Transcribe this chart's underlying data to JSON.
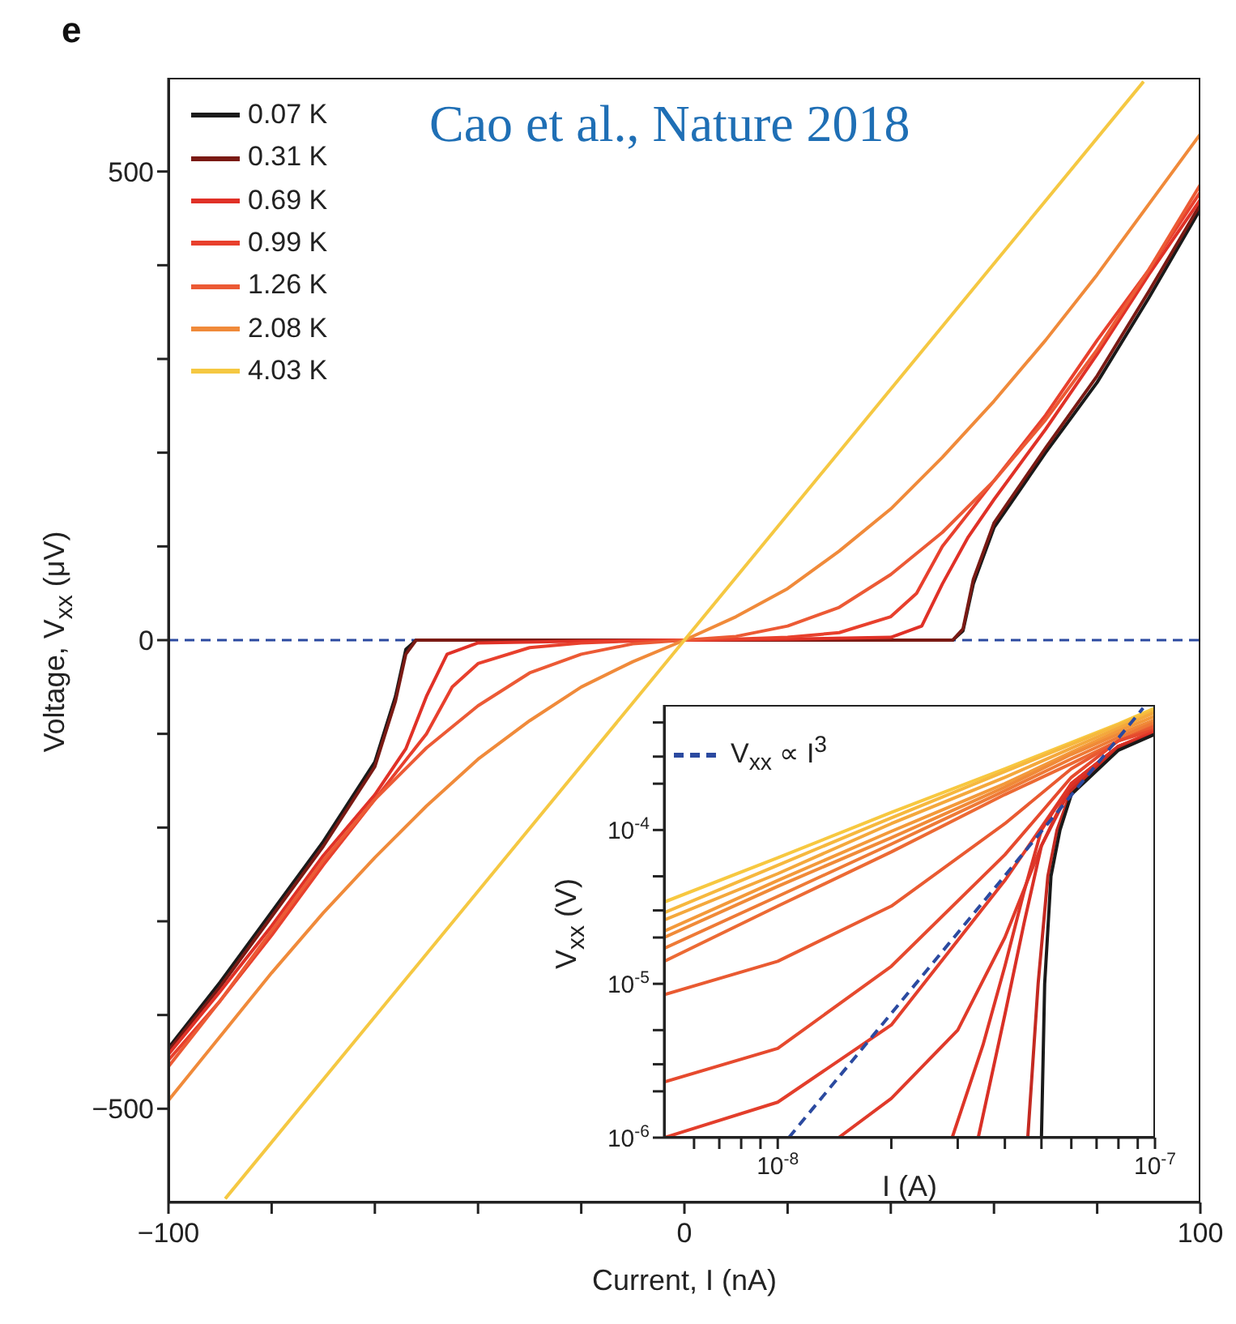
{
  "chart_data": [
    {
      "type": "line",
      "xlabel": "Current, I (nA)",
      "ylabel": "Voltage, V$_{xx}$ (μV)",
      "annotations": [
        "e",
        "Cao et al., Nature 2018"
      ],
      "xlim": [
        -100,
        100
      ],
      "ylim": [
        -600,
        600
      ],
      "xticks": [
        -100,
        {
          "value": -80,
          "label": null
        },
        {
          "value": -60,
          "label": null
        },
        {
          "value": -40,
          "label": null
        },
        {
          "value": -20,
          "label": null
        },
        0,
        {
          "value": 20,
          "label": null
        },
        {
          "value": 40,
          "label": null
        },
        {
          "value": 60,
          "label": null
        },
        {
          "value": 80,
          "label": null
        },
        100
      ],
      "yticks": [
        -500,
        {
          "value": -400,
          "label": null
        },
        {
          "value": -300,
          "label": null
        },
        {
          "value": -200,
          "label": null
        },
        {
          "value": -100,
          "label": null
        },
        0,
        {
          "value": 100,
          "label": null
        },
        {
          "value": 200,
          "label": null
        },
        {
          "value": 300,
          "label": null
        },
        {
          "value": 400,
          "label": null
        },
        500
      ],
      "legend": "top left",
      "marker": "none",
      "ref_lines": [
        {
          "axis": "y",
          "value": 0,
          "color": "#2b4aa0",
          "line_style": "dashed"
        }
      ],
      "series": [
        {
          "name": "0.07 K",
          "color": "#1a1a1a",
          "x": [
            -100,
            -90,
            -80,
            -70,
            -60,
            -56,
            -54,
            -52,
            0,
            52,
            54,
            56,
            60,
            70,
            80,
            90,
            100
          ],
          "values": [
            -435,
            -365,
            -290,
            -215,
            -130,
            -60,
            -10,
            0,
            0,
            0,
            10,
            60,
            120,
            200,
            275,
            365,
            460
          ]
        },
        {
          "name": "0.31 K",
          "color": "#7a1a14",
          "x": [
            -100,
            -90,
            -80,
            -70,
            -60,
            -56,
            -54,
            -52,
            0,
            52,
            54,
            56,
            60,
            70,
            80,
            90,
            100
          ],
          "values": [
            -438,
            -370,
            -295,
            -220,
            -135,
            -65,
            -15,
            0,
            0,
            0,
            12,
            65,
            125,
            205,
            282,
            372,
            465
          ]
        },
        {
          "name": "0.69 K",
          "color": "#e03127",
          "x": [
            -100,
            -90,
            -80,
            -70,
            -60,
            -54,
            -50,
            -46,
            -40,
            -20,
            0,
            20,
            40,
            46,
            50,
            55,
            60,
            70,
            80,
            90,
            100
          ],
          "values": [
            -442,
            -375,
            -305,
            -230,
            -165,
            -116,
            -60,
            -15,
            -3,
            -1,
            0,
            1,
            3,
            15,
            60,
            110,
            150,
            225,
            305,
            390,
            470
          ]
        },
        {
          "name": "0.99 K",
          "color": "#e8402d",
          "x": [
            -100,
            -90,
            -80,
            -70,
            -60,
            -50,
            -45,
            -40,
            -30,
            -20,
            -10,
            0,
            10,
            20,
            30,
            40,
            45,
            50,
            60,
            70,
            80,
            90,
            100
          ],
          "values": [
            -448,
            -385,
            -315,
            -240,
            -170,
            -100,
            -50,
            -25,
            -8,
            -3,
            -1,
            0,
            1,
            3,
            8,
            25,
            50,
            100,
            170,
            240,
            320,
            395,
            478
          ]
        },
        {
          "name": "1.26 K",
          "color": "#ec5a35",
          "x": [
            -100,
            -90,
            -80,
            -70,
            -60,
            -50,
            -40,
            -30,
            -20,
            -10,
            0,
            10,
            20,
            30,
            40,
            50,
            60,
            70,
            80,
            90,
            100
          ],
          "values": [
            -455,
            -385,
            -310,
            -235,
            -170,
            -115,
            -70,
            -35,
            -15,
            -4,
            0,
            4,
            15,
            35,
            70,
            115,
            170,
            235,
            310,
            395,
            486
          ]
        },
        {
          "name": "2.08 K",
          "color": "#f08a3a",
          "x": [
            -100,
            -90,
            -80,
            -70,
            -60,
            -50,
            -40,
            -30,
            -20,
            -10,
            0,
            10,
            20,
            30,
            40,
            50,
            60,
            70,
            80,
            90,
            100
          ],
          "values": [
            -491,
            -423,
            -355,
            -291,
            -232,
            -177,
            -127,
            -86,
            -50,
            -23,
            0,
            25,
            55,
            95,
            140,
            195,
            255,
            320,
            390,
            465,
            540
          ]
        },
        {
          "name": "4.03 K",
          "color": "#f5c842",
          "x": [
            -89,
            0,
            89
          ],
          "values": [
            -596,
            0,
            596
          ]
        }
      ]
    },
    {
      "type": "line",
      "xlabel": "I (A)",
      "ylabel": "V$_{xx}$ (V)",
      "log": "xy",
      "xlim": [
        5e-09,
        1e-07
      ],
      "ylim": [
        1e-06,
        0.00065
      ],
      "xticks": [
        {
          "value": 6e-09,
          "label": null
        },
        {
          "value": 7e-09,
          "label": null
        },
        {
          "value": 8e-09,
          "label": null
        },
        {
          "value": 9e-09,
          "label": null
        },
        {
          "value": 1e-08,
          "label": "10$^{-8}$"
        },
        {
          "value": 2e-08,
          "label": null
        },
        {
          "value": 3e-08,
          "label": null
        },
        {
          "value": 4e-08,
          "label": null
        },
        {
          "value": 5e-08,
          "label": null
        },
        {
          "value": 6e-08,
          "label": null
        },
        {
          "value": 7e-08,
          "label": null
        },
        {
          "value": 8e-08,
          "label": null
        },
        {
          "value": 9e-08,
          "label": null
        },
        {
          "value": 1e-07,
          "label": "10$^{-7}$"
        }
      ],
      "yticks": [
        {
          "value": 1e-06,
          "label": "10$^{-6}$"
        },
        {
          "value": 2e-06,
          "label": null
        },
        {
          "value": 3e-06,
          "label": null
        },
        {
          "value": 5e-06,
          "label": null
        },
        {
          "value": 1e-05,
          "label": "10$^{-5}$"
        },
        {
          "value": 2e-05,
          "label": null
        },
        {
          "value": 3e-05,
          "label": null
        },
        {
          "value": 5e-05,
          "label": null
        },
        {
          "value": 0.0001,
          "label": "10$^{-4}$"
        },
        {
          "value": 0.0002,
          "label": null
        },
        {
          "value": 0.0003,
          "label": null
        },
        {
          "value": 0.0005,
          "label": null
        }
      ],
      "legend": "top left",
      "marker": "none",
      "series": [
        {
          "color": "#f7c840",
          "x": [
            5e-09,
            1e-08,
            2e-08,
            4e-08,
            6e-08,
            8e-08,
            1e-07
          ],
          "values": [
            3.4e-05,
            6.6e-05,
            0.00013,
            0.00025,
            0.00037,
            0.00049,
            0.00062
          ]
        },
        {
          "color": "#f6b83e",
          "x": [
            5e-09,
            1e-08,
            2e-08,
            4e-08,
            6e-08,
            8e-08,
            1e-07
          ],
          "values": [
            2.9e-05,
            5.9e-05,
            0.00012,
            0.00024,
            0.00036,
            0.00048,
            0.0006
          ]
        },
        {
          "color": "#f4a83c",
          "x": [
            5e-09,
            1e-08,
            2e-08,
            4e-08,
            6e-08,
            8e-08,
            1e-07
          ],
          "values": [
            2.6e-05,
            5.2e-05,
            0.00011,
            0.00022,
            0.00034,
            0.00046,
            0.00058
          ]
        },
        {
          "color": "#f3993a",
          "x": [
            5e-09,
            1e-08,
            2e-08,
            4e-08,
            6e-08,
            8e-08,
            1e-07
          ],
          "values": [
            2.2e-05,
            4.7e-05,
            9.8e-05,
            0.0002,
            0.00032,
            0.00044,
            0.00055
          ]
        },
        {
          "color": "#f08a38",
          "x": [
            5e-09,
            1e-08,
            2e-08,
            4e-08,
            6e-08,
            8e-08,
            1e-07
          ],
          "values": [
            2e-05,
            4.3e-05,
            8.9e-05,
            0.00019,
            0.00031,
            0.00042,
            0.00052
          ]
        },
        {
          "color": "#ee7a36",
          "x": [
            5e-09,
            1e-08,
            2e-08,
            4e-08,
            6e-08,
            8e-08,
            1e-07
          ],
          "values": [
            1.7e-05,
            3.7e-05,
            8.1e-05,
            0.00018,
            0.00029,
            0.0004,
            0.0005
          ]
        },
        {
          "color": "#ec6a34",
          "x": [
            5e-09,
            1e-08,
            2e-08,
            4e-08,
            6e-08,
            8e-08,
            1e-07
          ],
          "values": [
            1.4e-05,
            3.2e-05,
            7.2e-05,
            0.00017,
            0.00027,
            0.00038,
            0.00048
          ]
        },
        {
          "color": "#e95a31",
          "x": [
            5e-09,
            1e-08,
            2e-08,
            4e-08,
            6e-08,
            8e-08,
            1e-07
          ],
          "values": [
            8.5e-06,
            1.4e-05,
            3.2e-05,
            0.00011,
            0.00025,
            0.00038,
            0.00047
          ]
        },
        {
          "color": "#e64a2e",
          "x": [
            5e-09,
            1e-08,
            2e-08,
            4e-08,
            6e-08,
            8e-08,
            1e-07
          ],
          "values": [
            2.3e-06,
            3.8e-06,
            1.3e-05,
            6.9e-05,
            0.00022,
            0.00038,
            0.00045
          ]
        },
        {
          "color": "#e33e2b",
          "x": [
            5e-09,
            1e-08,
            2e-08,
            4e-08,
            6e-08,
            8e-08,
            1e-07
          ],
          "values": [
            1e-06,
            1.7e-06,
            5.4e-06,
            4.7e-05,
            0.0002,
            0.00035,
            0.00044
          ]
        },
        {
          "color": "#e03a2a",
          "x": [
            1.45e-08,
            2e-08,
            3e-08,
            4e-08,
            5e-08,
            6e-08,
            8e-08,
            1e-07
          ],
          "values": [
            1e-06,
            1.8e-06,
            5e-06,
            2e-05,
            7.9e-05,
            0.0002,
            0.00035,
            0.00043
          ]
        },
        {
          "color": "#dd3528",
          "x": [
            2.9e-08,
            3.5e-08,
            4e-08,
            4.5e-08,
            5e-08,
            6e-08,
            8e-08,
            1e-07
          ],
          "values": [
            1e-06,
            4e-06,
            1.3e-05,
            4e-05,
            0.0001,
            0.0002,
            0.00035,
            0.00043
          ]
        },
        {
          "color": "#d93026",
          "x": [
            3.4e-08,
            4e-08,
            4.5e-08,
            5e-08,
            6e-08,
            8e-08,
            1e-07
          ],
          "values": [
            1e-06,
            6.3e-06,
            2.5e-05,
            7.9e-05,
            0.00019,
            0.00035,
            0.00042
          ]
        },
        {
          "color": "#c42a22",
          "x": [
            4.6e-08,
            4.9e-08,
            5.2e-08,
            5.5e-08,
            6e-08,
            8e-08,
            1e-07
          ],
          "values": [
            1e-06,
            1e-05,
            5e-05,
            0.0001,
            0.00018,
            0.00034,
            0.00042
          ]
        },
        {
          "color": "#1a1a1a",
          "x": [
            5e-08,
            5.1e-08,
            5.3e-08,
            5.6e-08,
            6e-08,
            8e-08,
            1e-07
          ],
          "values": [
            1e-06,
            1e-05,
            5e-05,
            0.0001,
            0.00017,
            0.00033,
            0.00042
          ]
        },
        {
          "name": "V$_{xx}$ ∝ I$^{3}$",
          "color": "#2b4aa0",
          "line_style": "dashed",
          "x": [
            1.07e-08,
            9.3e-08
          ],
          "values": [
            1e-06,
            0.00062
          ]
        }
      ]
    }
  ]
}
